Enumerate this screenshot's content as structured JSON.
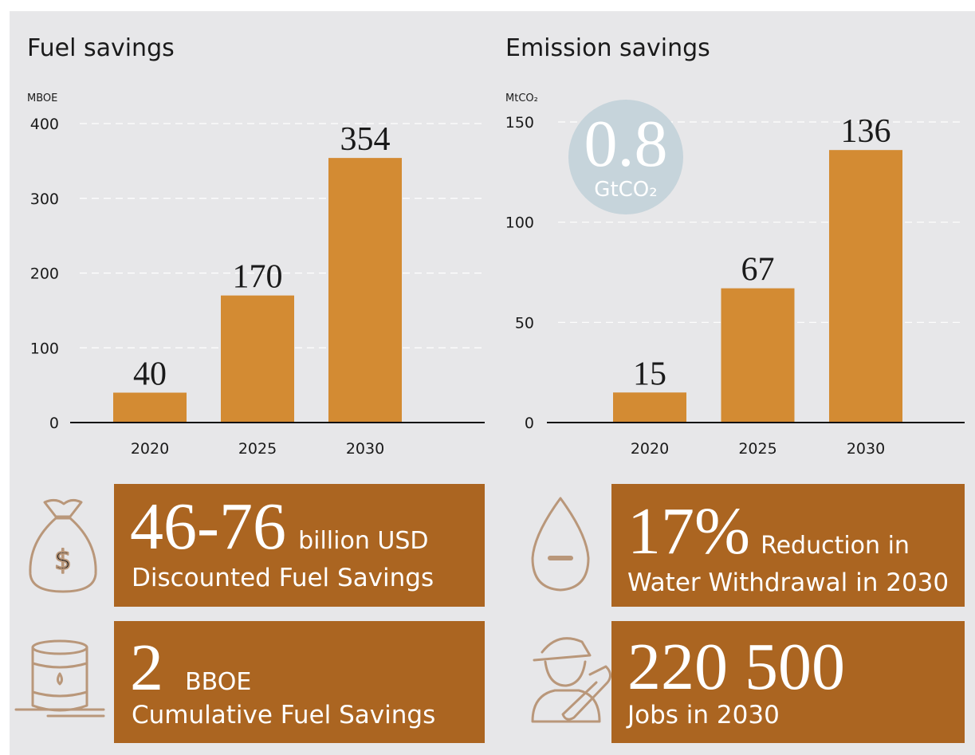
{
  "chart_data": [
    {
      "type": "bar",
      "title": "Fuel savings",
      "y_label": "MBOE",
      "categories": [
        "2020",
        "2025",
        "2030"
      ],
      "values": [
        40,
        170,
        354
      ],
      "color": "#d38b33",
      "ylim": [
        0,
        400
      ],
      "yticks": [
        0,
        100,
        200,
        300,
        400
      ],
      "grid": true
    },
    {
      "type": "bar",
      "title": "Emission savings",
      "y_label": "MtCO₂",
      "categories": [
        "2020",
        "2025",
        "2030"
      ],
      "values": [
        15,
        67,
        136
      ],
      "color": "#d38b33",
      "ylim": [
        0,
        150
      ],
      "yticks": [
        0,
        50,
        100,
        150
      ],
      "grid": true,
      "annotation": {
        "value": "0.8",
        "unit": "GtCO₂"
      }
    }
  ],
  "stats": [
    {
      "value": "46-76",
      "unit": "billion USD",
      "label": "Discounted Fuel Savings"
    },
    {
      "value": "17%",
      "unit": "Reduction in",
      "label": "Water Withdrawal in 2030"
    },
    {
      "value": "2",
      "unit": "BBOE",
      "label": "Cumulative Fuel Savings"
    },
    {
      "value": "220 500",
      "label": "Jobs in 2030"
    }
  ]
}
